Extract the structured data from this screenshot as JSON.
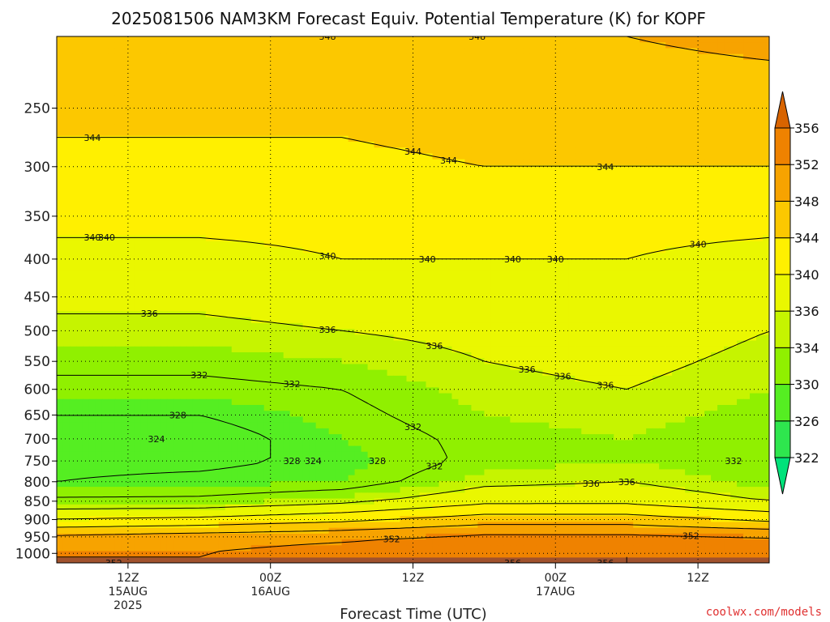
{
  "chart_data": {
    "type": "heatmap",
    "title": "2025081506 NAM3KM Forecast Equiv. Potential Temperature (K) for KOPF",
    "xlabel": "Forecast Time (UTC)",
    "ylabel": "",
    "y_scale": "log-pressure",
    "ylim": [
      1030,
      200
    ],
    "yticks": [
      250,
      300,
      350,
      400,
      450,
      500,
      550,
      600,
      650,
      700,
      750,
      800,
      850,
      900,
      950,
      1000
    ],
    "xlim": [
      "2025-08-15T06:00Z",
      "2025-08-17T18:00Z"
    ],
    "xticks": [
      {
        "time": "2025-08-15T12:00Z",
        "lines": [
          "12Z",
          "15AUG",
          "2025"
        ]
      },
      {
        "time": "2025-08-16T00:00Z",
        "lines": [
          "00Z",
          "16AUG"
        ]
      },
      {
        "time": "2025-08-16T12:00Z",
        "lines": [
          "12Z"
        ]
      },
      {
        "time": "2025-08-17T00:00Z",
        "lines": [
          "00Z",
          "17AUG"
        ]
      },
      {
        "time": "2025-08-17T12:00Z",
        "lines": [
          "12Z"
        ]
      }
    ],
    "grid": true,
    "colorbar": {
      "levels": [
        322,
        326,
        330,
        334,
        336,
        340,
        344,
        348,
        352,
        356
      ],
      "colors": [
        "#00e27a",
        "#2ee64e",
        "#55ee22",
        "#90f000",
        "#c6f400",
        "#eaf700",
        "#fff000",
        "#fcc800",
        "#f7a300",
        "#ef8200",
        "#d86400"
      ],
      "position": "right"
    },
    "profile_times": [
      "2025-08-15T06:00Z",
      "2025-08-15T18:00Z",
      "2025-08-16T06:00Z",
      "2025-08-16T18:00Z",
      "2025-08-17T06:00Z",
      "2025-08-17T18:00Z"
    ],
    "profile_levels_hPa": [
      1000,
      950,
      900,
      850,
      800,
      750,
      700,
      650,
      600,
      550,
      500,
      450,
      400,
      350,
      300,
      250,
      200
    ],
    "profile_values_K": [
      [
        352,
        349,
        340,
        333,
        328,
        327,
        326,
        328,
        331,
        333,
        335,
        337,
        339,
        341,
        343,
        345,
        348
      ],
      [
        352,
        350,
        341,
        333,
        329,
        327,
        326,
        328,
        331,
        333,
        335,
        337,
        339,
        341,
        343,
        345,
        348
      ],
      [
        354,
        351,
        343,
        335,
        330,
        329,
        330,
        331,
        332,
        334,
        336,
        338,
        340,
        341,
        343,
        345,
        348
      ],
      [
        355,
        353,
        346,
        339,
        335,
        333,
        333,
        334,
        335,
        336,
        337,
        339,
        340,
        341,
        344,
        346,
        348
      ],
      [
        356,
        353,
        346,
        339,
        336,
        334,
        334,
        335,
        336,
        337,
        338,
        339,
        340,
        341,
        344,
        346,
        348
      ],
      [
        355,
        352,
        343,
        336,
        333,
        332,
        332,
        333,
        334,
        335,
        336,
        338,
        339,
        341,
        344,
        346,
        349
      ]
    ],
    "contour_labels": [
      "344",
      "344",
      "340",
      "340",
      "340",
      "336",
      "336",
      "336",
      "336",
      "336",
      "332",
      "332",
      "332",
      "324",
      "328",
      "328",
      "324",
      "344",
      "344",
      "340",
      "340",
      "336",
      "336",
      "332",
      "332",
      "328",
      "336",
      "340",
      "340",
      "348",
      "348",
      "356",
      "356",
      "352",
      "352",
      "352"
    ]
  },
  "credit": "coolwx.com/models"
}
